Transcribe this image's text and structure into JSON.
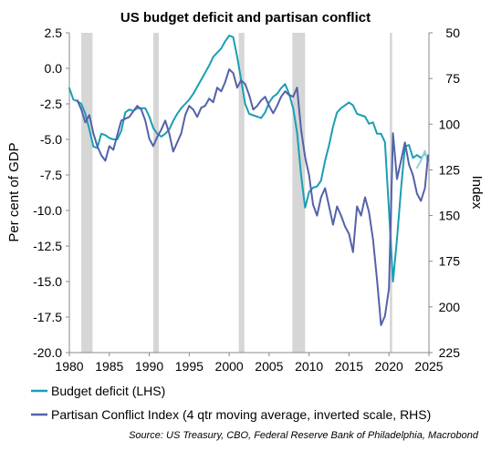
{
  "chart_data": {
    "type": "line",
    "title": "US budget deficit and partisan conflict",
    "ylabel": "Per cent of GDP",
    "y2label": "Index",
    "ylim": [
      -20.0,
      2.5
    ],
    "y2lim": [
      225,
      50
    ],
    "y2_inverted": true,
    "xlim": [
      1980,
      2025
    ],
    "x_ticks": [
      "1980",
      "1985",
      "1990",
      "1995",
      "2000",
      "2005",
      "2010",
      "2015",
      "2020",
      "2025"
    ],
    "y_ticks": [
      "2.5",
      "0.0",
      "-2.5",
      "-5.0",
      "-7.5",
      "-10.0",
      "-12.5",
      "-15.0",
      "-17.5",
      "-20.0"
    ],
    "y2_ticks": [
      "50",
      "75",
      "100",
      "125",
      "150",
      "175",
      "200",
      "225"
    ],
    "recession_bands": [
      [
        1981.5,
        1982.9
      ],
      [
        1990.5,
        1991.2
      ],
      [
        2001.2,
        2001.9
      ],
      [
        2007.9,
        2009.5
      ],
      [
        2020.1,
        2020.4
      ]
    ],
    "legend_position": "bottom",
    "series": [
      {
        "name": "Budget deficit (LHS)",
        "axis": "left",
        "color": "#1a9eb4",
        "x": [
          1980.0,
          1980.5,
          1981.0,
          1981.5,
          1982.0,
          1982.5,
          1983.0,
          1983.5,
          1984.0,
          1984.5,
          1985.0,
          1985.5,
          1986.0,
          1986.5,
          1987.0,
          1987.5,
          1988.0,
          1988.5,
          1989.0,
          1989.5,
          1990.0,
          1990.5,
          1991.0,
          1991.5,
          1992.0,
          1992.5,
          1993.0,
          1993.5,
          1994.0,
          1994.5,
          1995.0,
          1995.5,
          1996.0,
          1996.5,
          1997.0,
          1997.5,
          1998.0,
          1998.5,
          1999.0,
          1999.5,
          2000.0,
          2000.5,
          2001.0,
          2001.5,
          2002.0,
          2002.5,
          2003.0,
          2003.5,
          2004.0,
          2004.5,
          2005.0,
          2005.5,
          2006.0,
          2006.5,
          2007.0,
          2007.5,
          2008.0,
          2008.5,
          2009.0,
          2009.5,
          2010.0,
          2010.5,
          2011.0,
          2011.5,
          2012.0,
          2012.5,
          2013.0,
          2013.5,
          2014.0,
          2014.5,
          2015.0,
          2015.5,
          2016.0,
          2016.5,
          2017.0,
          2017.5,
          2018.0,
          2018.5,
          2019.0,
          2019.5,
          2020.0,
          2020.5,
          2021.0,
          2021.5,
          2022.0,
          2022.5,
          2023.0,
          2023.5,
          2024.0,
          2024.5
        ],
        "values": [
          -1.4,
          -2.2,
          -2.3,
          -2.5,
          -3.2,
          -4.3,
          -5.5,
          -5.6,
          -4.6,
          -4.7,
          -4.9,
          -5.0,
          -5.0,
          -4.4,
          -3.1,
          -2.9,
          -3.0,
          -2.8,
          -2.8,
          -2.8,
          -3.4,
          -4.2,
          -4.6,
          -4.8,
          -4.6,
          -4.3,
          -3.7,
          -3.2,
          -2.8,
          -2.5,
          -2.2,
          -1.8,
          -1.3,
          -0.8,
          -0.3,
          0.2,
          0.8,
          1.1,
          1.4,
          1.9,
          2.3,
          2.2,
          0.8,
          -0.8,
          -2.5,
          -3.2,
          -3.3,
          -3.4,
          -3.5,
          -3.1,
          -2.4,
          -2.0,
          -1.8,
          -1.4,
          -1.1,
          -1.8,
          -2.8,
          -4.5,
          -7.5,
          -9.8,
          -8.7,
          -8.4,
          -8.3,
          -7.9,
          -6.5,
          -5.4,
          -4.1,
          -3.1,
          -2.8,
          -2.6,
          -2.4,
          -2.6,
          -3.2,
          -3.3,
          -3.4,
          -3.9,
          -3.8,
          -4.6,
          -4.6,
          -5.2,
          -10.0,
          -15.0,
          -12.0,
          -8.5,
          -5.5,
          -5.4,
          -6.3,
          -6.1,
          -6.3,
          -6.0
        ]
      },
      {
        "name": "",
        "axis": "left",
        "color": "#8fd0dc",
        "x": [
          2023.5,
          2024.0,
          2024.5,
          2024.9
        ],
        "values": [
          -7.0,
          -6.5,
          -5.8,
          -6.7
        ]
      },
      {
        "name": "Partisan Conflict Index (4 qtr moving average, inverted scale, RHS)",
        "axis": "right",
        "color": "#5462a8",
        "x": [
          1981.0,
          1981.5,
          1982.0,
          1982.5,
          1983.0,
          1983.5,
          1984.0,
          1984.5,
          1985.0,
          1985.5,
          1986.0,
          1986.5,
          1987.0,
          1987.5,
          1988.0,
          1988.5,
          1989.0,
          1989.5,
          1990.0,
          1990.5,
          1991.0,
          1991.5,
          1992.0,
          1992.5,
          1993.0,
          1993.5,
          1994.0,
          1994.5,
          1995.0,
          1995.5,
          1996.0,
          1996.5,
          1997.0,
          1997.5,
          1998.0,
          1998.5,
          1999.0,
          1999.5,
          2000.0,
          2000.5,
          2001.0,
          2001.5,
          2002.0,
          2002.5,
          2003.0,
          2003.5,
          2004.0,
          2004.5,
          2005.0,
          2005.5,
          2006.0,
          2006.5,
          2007.0,
          2007.5,
          2008.0,
          2008.5,
          2009.0,
          2009.5,
          2010.0,
          2010.5,
          2011.0,
          2011.5,
          2012.0,
          2012.5,
          2013.0,
          2013.5,
          2014.0,
          2014.5,
          2015.0,
          2015.5,
          2016.0,
          2016.5,
          2017.0,
          2017.5,
          2018.0,
          2018.5,
          2019.0,
          2019.5,
          2020.0,
          2020.5,
          2021.0,
          2021.5,
          2022.0,
          2022.5,
          2023.0,
          2023.5,
          2024.0,
          2024.5,
          2024.9
        ],
        "values": [
          87,
          92,
          99,
          95,
          105,
          112,
          117,
          120,
          112,
          114,
          106,
          98,
          97,
          96,
          93,
          90,
          92,
          98,
          108,
          112,
          107,
          103,
          98,
          105,
          115,
          110,
          105,
          95,
          90,
          92,
          96,
          91,
          90,
          86,
          88,
          80,
          82,
          77,
          70,
          72,
          80,
          76,
          78,
          84,
          92,
          90,
          87,
          85,
          90,
          94,
          90,
          85,
          82,
          84,
          85,
          80,
          103,
          118,
          128,
          144,
          150,
          140,
          135,
          145,
          155,
          145,
          150,
          156,
          160,
          170,
          145,
          150,
          140,
          148,
          163,
          185,
          210,
          205,
          190,
          105,
          130,
          120,
          110,
          122,
          128,
          138,
          142,
          135,
          117
        ]
      }
    ]
  },
  "legend": [
    {
      "label": "Budget deficit (LHS)",
      "color": "#1a9eb4"
    },
    {
      "label": "Partisan Conflict Index (4 qtr moving average, inverted scale, RHS)",
      "color": "#5462a8"
    }
  ],
  "source": "Source: US Treasury, CBO, Federal Reserve Bank of Philadelphia, Macrobond"
}
